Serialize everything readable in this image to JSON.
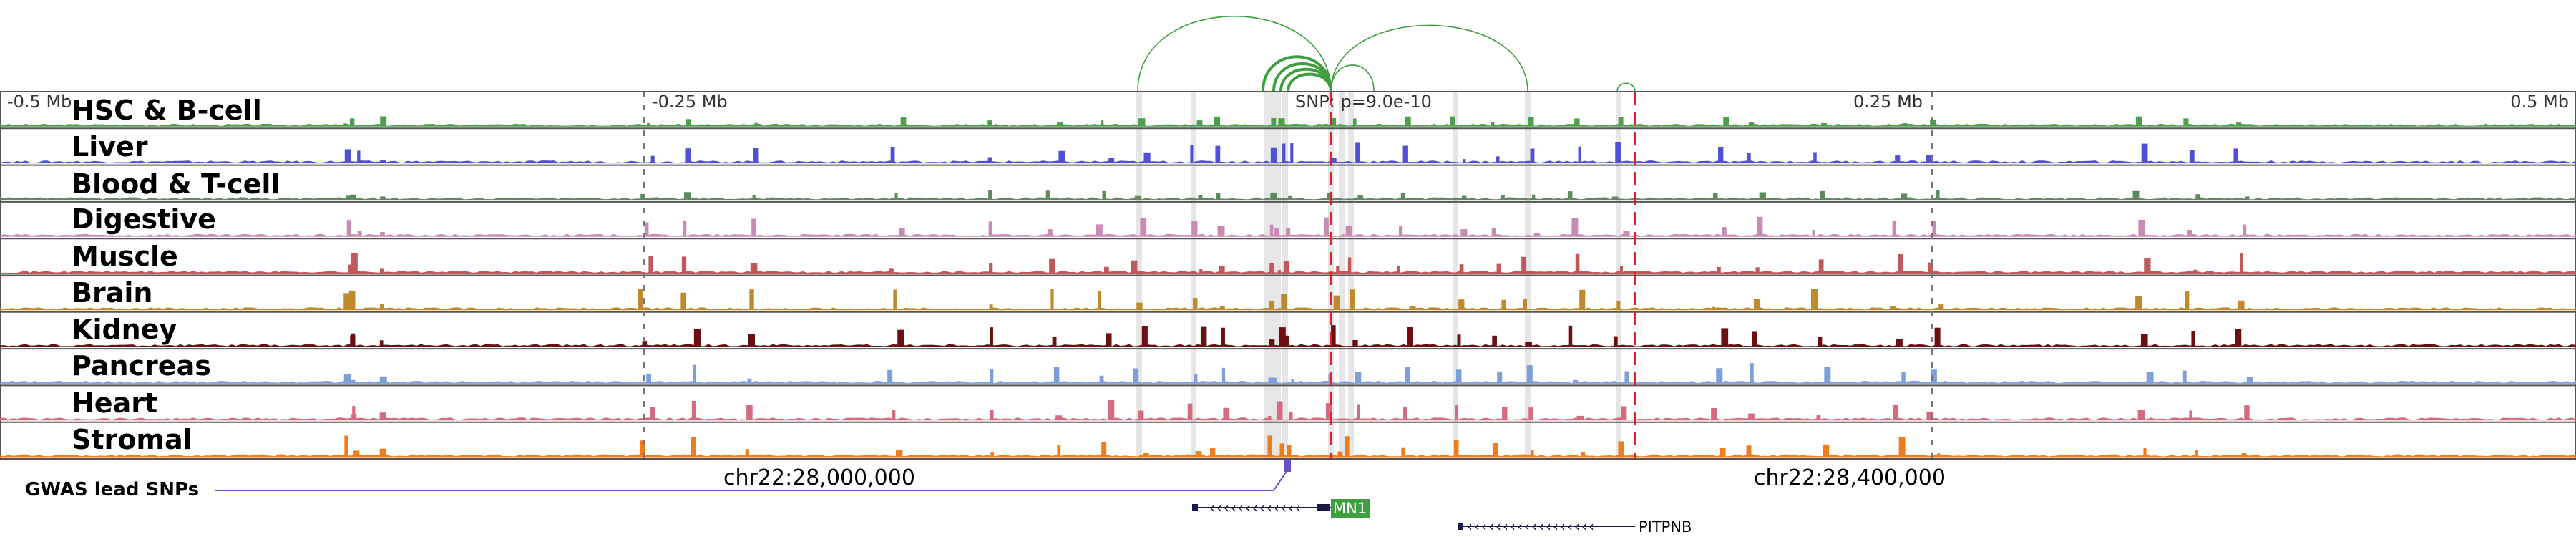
{
  "scale": {
    "labels": [
      "-0.5 Mb",
      "-0.25 Mb",
      "0.25 Mb",
      "0.5 Mb"
    ],
    "snp_label": "SNP: p=9.0e-10"
  },
  "tracks": [
    {
      "label": "HSC & B-cell",
      "color": "#4f9e4f"
    },
    {
      "label": "Liver",
      "color": "#4f4fd9"
    },
    {
      "label": "Blood & T-cell",
      "color": "#5e8a5e"
    },
    {
      "label": "Digestive",
      "color": "#c98ab5"
    },
    {
      "label": "Muscle",
      "color": "#c0595c"
    },
    {
      "label": "Brain",
      "color": "#bf8a2b"
    },
    {
      "label": "Kidney",
      "color": "#6b0f12"
    },
    {
      "label": "Pancreas",
      "color": "#7f9fd9"
    },
    {
      "label": "Heart",
      "color": "#d66a7f"
    },
    {
      "label": "Stromal",
      "color": "#f07d1a"
    }
  ],
  "gwas": {
    "label": "GWAS lead SNPs",
    "color": "#6a4fcf"
  },
  "coordinates": [
    "chr22:28,000,000",
    "chr22:28,400,000"
  ],
  "genes": [
    {
      "name": "MN1",
      "strand": "-",
      "label_bg": "#3f9e3f"
    },
    {
      "name": "PITPNB",
      "strand": "-"
    }
  ],
  "colors": {
    "loop": "#3f9e3f",
    "marker": "#e0202a",
    "highlight": "#c8c8c8"
  }
}
